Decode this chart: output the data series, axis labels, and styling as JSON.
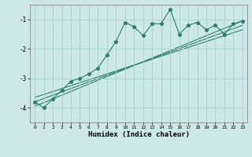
{
  "xlabel": "Humidex (Indice chaleur)",
  "ylabel": "",
  "background_color": "#cce8e8",
  "grid_color": "#aad0d0",
  "line_color": "#2e7d6e",
  "xlim": [
    -0.5,
    23.5
  ],
  "ylim": [
    -4.5,
    -0.5
  ],
  "yticks": [
    -4,
    -3,
    -2,
    -1
  ],
  "xticks": [
    0,
    1,
    2,
    3,
    4,
    5,
    6,
    7,
    8,
    9,
    10,
    11,
    12,
    13,
    14,
    15,
    16,
    17,
    18,
    19,
    20,
    21,
    22,
    23
  ],
  "main_series_x": [
    0,
    1,
    2,
    3,
    4,
    5,
    6,
    7,
    8,
    9,
    10,
    11,
    12,
    13,
    14,
    15,
    16,
    17,
    18,
    19,
    20,
    21,
    22,
    23
  ],
  "main_series_y": [
    -3.8,
    -4.0,
    -3.7,
    -3.4,
    -3.1,
    -3.0,
    -2.85,
    -2.65,
    -2.2,
    -1.75,
    -1.1,
    -1.25,
    -1.55,
    -1.15,
    -1.15,
    -0.65,
    -1.5,
    -1.2,
    -1.1,
    -1.35,
    -1.2,
    -1.5,
    -1.15,
    -1.05
  ],
  "line1_x": [
    0,
    23
  ],
  "line1_y": [
    -3.95,
    -1.05
  ],
  "line2_x": [
    0,
    23
  ],
  "line2_y": [
    -3.8,
    -1.2
  ],
  "line3_x": [
    0,
    23
  ],
  "line3_y": [
    -3.65,
    -1.35
  ]
}
